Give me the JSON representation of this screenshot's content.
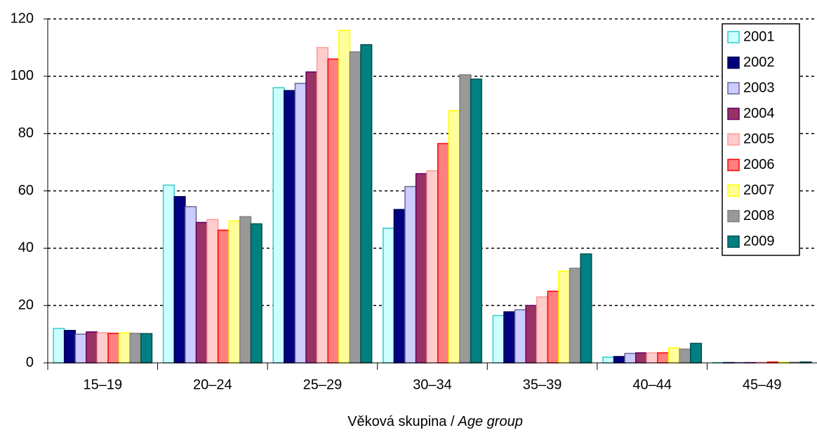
{
  "chart_data": {
    "type": "bar",
    "categories": [
      "15–19",
      "20–24",
      "25–29",
      "30–34",
      "35–39",
      "40–44",
      "45–49"
    ],
    "series": [
      {
        "name": "2001",
        "color": "#ccffff",
        "edgecolor": "#33cccc",
        "values": [
          12,
          62,
          96,
          47,
          16.5,
          2,
          0.1
        ]
      },
      {
        "name": "2002",
        "color": "#000080",
        "edgecolor": "#000050",
        "values": [
          11.3,
          58,
          95,
          53.5,
          17.8,
          2.2,
          0.1
        ]
      },
      {
        "name": "2003",
        "color": "#ccccff",
        "edgecolor": "#666699",
        "values": [
          10,
          54.5,
          97.5,
          61.5,
          18.5,
          3.3,
          0.1
        ]
      },
      {
        "name": "2004",
        "color": "#993366",
        "edgecolor": "#660066",
        "values": [
          10.8,
          49,
          101.5,
          66,
          20,
          3.5,
          0.1
        ]
      },
      {
        "name": "2005",
        "color": "#ffcccc",
        "edgecolor": "#ff9999",
        "values": [
          10.5,
          50,
          110,
          67,
          23,
          3.5,
          0.2
        ]
      },
      {
        "name": "2006",
        "color": "#ff8080",
        "edgecolor": "#ff0000",
        "values": [
          10.3,
          46.3,
          106,
          76.5,
          25,
          3.5,
          0.3
        ]
      },
      {
        "name": "2007",
        "color": "#ffff99",
        "edgecolor": "#ffff00",
        "values": [
          10.5,
          49.5,
          116,
          88,
          32,
          5.2,
          0.2
        ]
      },
      {
        "name": "2008",
        "color": "#999999",
        "edgecolor": "#808080",
        "values": [
          10.3,
          51,
          108.5,
          100.5,
          33,
          4.8,
          0.2
        ]
      },
      {
        "name": "2009",
        "color": "#008080",
        "edgecolor": "#004d4d",
        "values": [
          10.2,
          48.5,
          111,
          99,
          38,
          6.8,
          0.3
        ]
      }
    ],
    "xlabel": [
      "Věková skupina /",
      "Age group"
    ],
    "ylim": [
      0,
      120
    ],
    "yticks": [
      0,
      20,
      40,
      60,
      80,
      100,
      120
    ],
    "grid": true,
    "legend": "upper right"
  }
}
